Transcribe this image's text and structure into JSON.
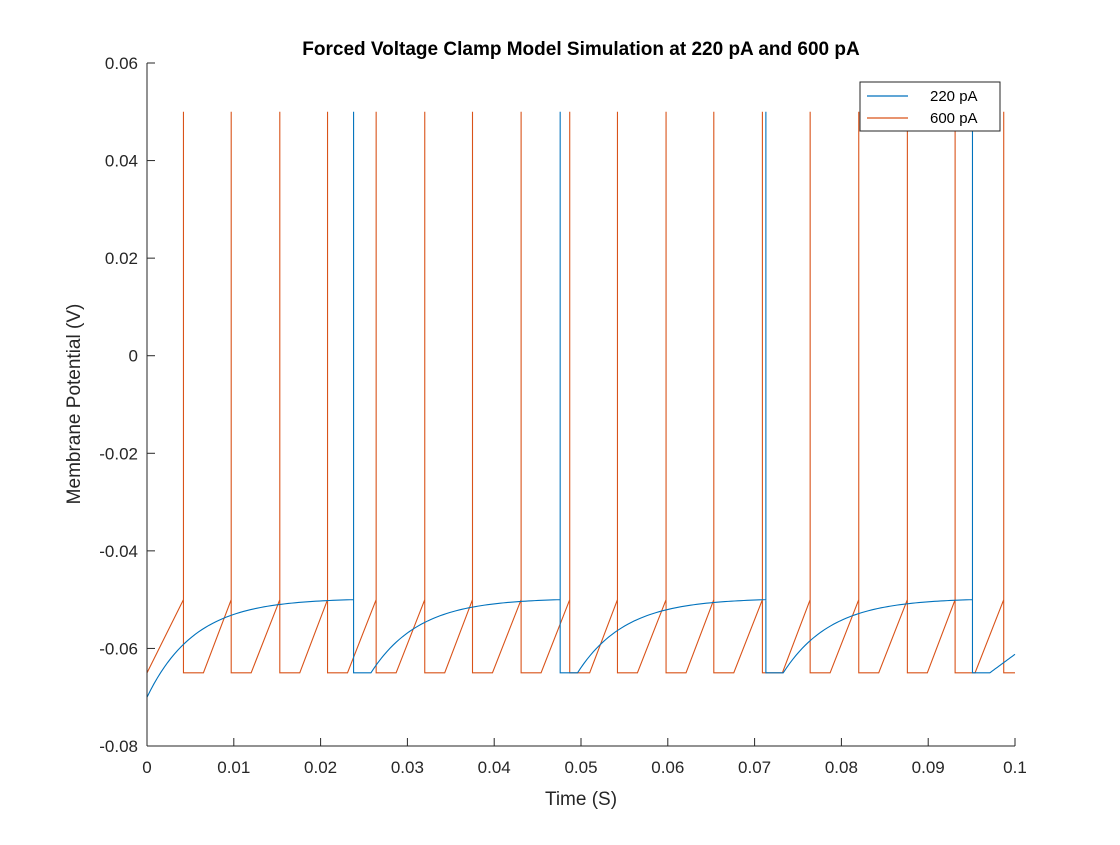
{
  "chart_data": {
    "type": "line",
    "title": "Forced Voltage Clamp Model Simulation at 220 pA and 600 pA",
    "xlabel": "Time (S)",
    "ylabel": "Membrane Potential (V)",
    "xlim": [
      0,
      0.1
    ],
    "ylim": [
      -0.08,
      0.06
    ],
    "xticks": [
      0,
      0.01,
      0.02,
      0.03,
      0.04,
      0.05,
      0.06,
      0.07,
      0.08,
      0.09,
      0.1
    ],
    "xtick_labels": [
      "0",
      "0.01",
      "0.02",
      "0.03",
      "0.04",
      "0.05",
      "0.06",
      "0.07",
      "0.08",
      "0.09",
      "0.1"
    ],
    "yticks": [
      -0.08,
      -0.06,
      -0.04,
      -0.02,
      0,
      0.02,
      0.04,
      0.06
    ],
    "ytick_labels": [
      "-0.08",
      "-0.06",
      "-0.04",
      "-0.02",
      "0",
      "0.02",
      "0.04",
      "0.06"
    ],
    "grid": false,
    "legend_position": "top-right",
    "series": [
      {
        "name": "220 pA",
        "color": "#0072BD",
        "model": {
          "v_rest": -0.07,
          "v_reset": -0.065,
          "v_threshold": -0.05,
          "v_peak": 0.05,
          "spike_times": [
            0.0238,
            0.0476,
            0.0713,
            0.0951
          ],
          "refractory": 0.002,
          "tau_rise": 0.0055,
          "end_value": -0.0612,
          "x_end": 0.1
        }
      },
      {
        "name": "600 pA",
        "color": "#D95319",
        "model": {
          "v_start": -0.065,
          "v_reset": -0.065,
          "v_threshold": -0.05,
          "v_peak": 0.05,
          "spike_times": [
            0.0042,
            0.0097,
            0.0153,
            0.0208,
            0.0264,
            0.032,
            0.0375,
            0.0431,
            0.0487,
            0.0542,
            0.0598,
            0.0653,
            0.0709,
            0.0764,
            0.082,
            0.0876,
            0.0931,
            0.0987
          ],
          "refractory": 0.0023,
          "x_end": 0.1
        }
      }
    ]
  }
}
